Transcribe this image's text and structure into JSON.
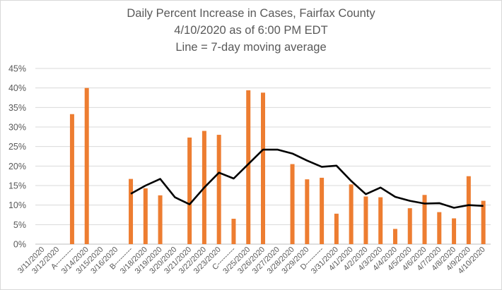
{
  "chart_data": {
    "type": "bar",
    "title": "Daily Percent Increase in Cases, Fairfax County",
    "subtitle": "4/10/2020 as of 6:00 PM EDT",
    "note": "Line = 7-day moving average",
    "xlabel": "",
    "ylabel": "",
    "ylim": [
      0,
      45
    ],
    "yticks": [
      "0%",
      "5%",
      "10%",
      "15%",
      "20%",
      "25%",
      "30%",
      "35%",
      "40%",
      "45%"
    ],
    "grid": true,
    "legend": "none",
    "categories": [
      "3/11/2020",
      "3/12/2020",
      "A---------",
      "3/14/2020",
      "3/15/2020",
      "3/16/2020",
      "B---------",
      "3/18/2020",
      "3/19/2020",
      "3/20/2020",
      "3/21/2020",
      "3/22/2020",
      "3/23/2020",
      "C---------",
      "3/25/2020",
      "3/26/2020",
      "3/27/2020",
      "3/28/2020",
      "3/29/2020",
      "D---------",
      "3/31/2020",
      "4/1/2020",
      "4/2/2020",
      "4/3/2020",
      "4/4/2020",
      "4/5/2020",
      "4/6/2020",
      "4/7/2020",
      "4/8/2020",
      "4/9/2020",
      "4/10/2020"
    ],
    "series": [
      {
        "type": "bar",
        "color": "#ed7d31",
        "values": [
          null,
          null,
          33.3,
          40.0,
          null,
          null,
          16.7,
          14.3,
          12.5,
          null,
          27.3,
          29.0,
          28.0,
          6.5,
          39.4,
          38.8,
          null,
          20.5,
          16.6,
          17.0,
          7.8,
          15.3,
          12.2,
          12.0,
          3.9,
          9.2,
          12.6,
          8.2,
          6.6,
          17.4,
          11.1
        ]
      },
      {
        "type": "line",
        "color": "#000000",
        "values": [
          null,
          null,
          null,
          null,
          null,
          null,
          12.9,
          15.0,
          16.7,
          12.0,
          10.2,
          14.5,
          18.3,
          16.8,
          20.5,
          24.2,
          24.2,
          23.2,
          21.4,
          19.8,
          20.1,
          16.2,
          12.8,
          14.5,
          12.1,
          11.1,
          10.4,
          10.5,
          9.3,
          10.0,
          9.8
        ]
      }
    ]
  }
}
